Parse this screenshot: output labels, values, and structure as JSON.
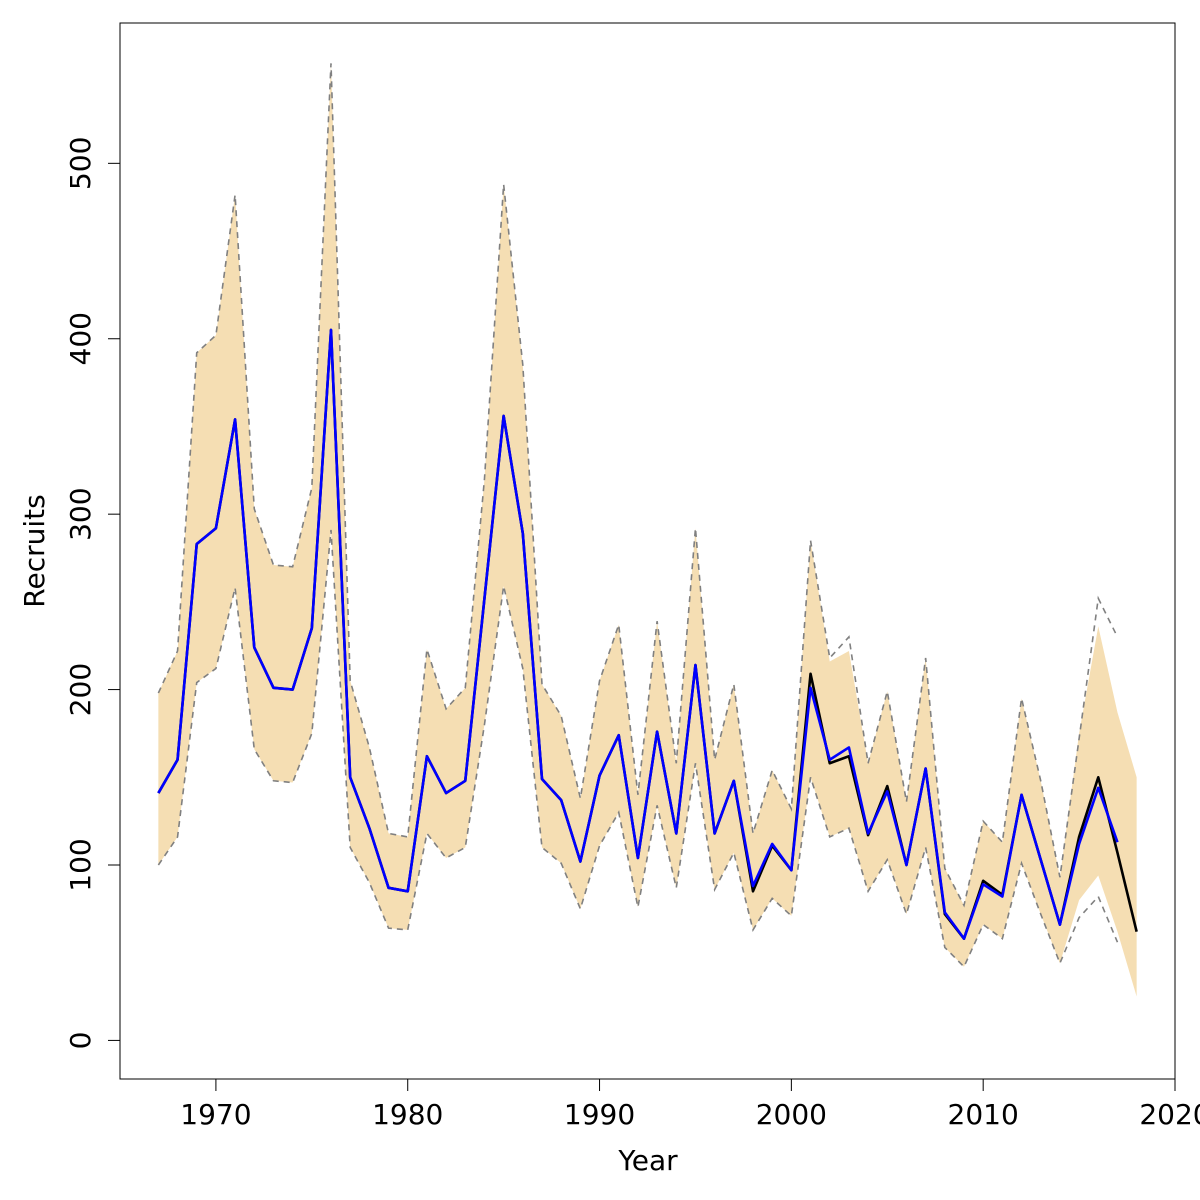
{
  "chart_data": {
    "type": "line",
    "title": "",
    "xlabel": "Year",
    "ylabel": "Recruits",
    "xlim": [
      1965,
      2020
    ],
    "ylim": [
      -22,
      580
    ],
    "xticks": [
      1970,
      1980,
      1990,
      2000,
      2010,
      2020
    ],
    "yticks": [
      0,
      100,
      200,
      300,
      400,
      500
    ],
    "grid": false,
    "legend": "none",
    "colors": {
      "band": "#f5deb3",
      "bound_lines": "#808080",
      "series_black": "#000000",
      "series_blue": "#0000ff",
      "axis": "#000000"
    },
    "band": {
      "x": [
        1967,
        1968,
        1969,
        1970,
        1971,
        1972,
        1973,
        1974,
        1975,
        1976,
        1977,
        1978,
        1979,
        1980,
        1981,
        1982,
        1983,
        1984,
        1985,
        1986,
        1987,
        1988,
        1989,
        1990,
        1991,
        1992,
        1993,
        1994,
        1995,
        1996,
        1997,
        1998,
        1999,
        2000,
        2001,
        2002,
        2003,
        2004,
        2005,
        2006,
        2007,
        2008,
        2009,
        2010,
        2011,
        2012,
        2013,
        2014,
        2015,
        2016,
        2017,
        2018
      ],
      "lower": [
        100,
        116,
        204,
        212,
        258,
        166,
        148,
        147,
        175,
        291,
        110,
        90,
        64,
        63,
        118,
        104,
        110,
        180,
        259,
        212,
        110,
        101,
        75,
        111,
        130,
        76,
        134,
        87,
        158,
        86,
        107,
        63,
        81,
        71,
        150,
        116,
        121,
        85,
        103,
        72,
        110,
        53,
        42,
        66,
        58,
        101,
        72,
        44,
        80,
        94,
        62,
        25
      ],
      "upper": [
        198,
        222,
        392,
        402,
        482,
        303,
        271,
        270,
        315,
        557,
        205,
        167,
        118,
        116,
        223,
        189,
        201,
        320,
        488,
        385,
        203,
        185,
        138,
        205,
        237,
        140,
        239,
        158,
        292,
        160,
        203,
        118,
        154,
        132,
        285,
        216,
        222,
        158,
        199,
        136,
        218,
        98,
        77,
        125,
        113,
        195,
        148,
        93,
        175,
        236,
        187,
        150
      ]
    },
    "series": [
      {
        "x": [
          1967,
          1968,
          1969,
          1970,
          1971,
          1972,
          1973,
          1974,
          1975,
          1976,
          1977,
          1978,
          1979,
          1980,
          1981,
          1982,
          1983,
          1984,
          1985,
          1986,
          1987,
          1988,
          1989,
          1990,
          1991,
          1992,
          1993,
          1994,
          1995,
          1996,
          1997,
          1998,
          1999,
          2000,
          2001,
          2002,
          2003,
          2004,
          2005,
          2006,
          2007,
          2008,
          2009,
          2010,
          2011,
          2012,
          2013,
          2014,
          2015,
          2016,
          2017,
          2018
        ],
        "values": [
          141,
          160,
          283,
          292,
          354,
          224,
          201,
          200,
          235,
          405,
          150,
          121,
          87,
          85,
          162,
          141,
          148,
          252,
          356,
          289,
          149,
          137,
          102,
          151,
          174,
          104,
          176,
          118,
          214,
          118,
          148,
          85,
          111,
          97,
          209,
          158,
          162,
          117,
          145,
          100,
          155,
          72,
          58,
          91,
          83,
          140,
          103,
          66,
          116,
          150,
          107,
          62
        ],
        "color": "#000000"
      },
      {
        "x": [
          1967,
          1968,
          1969,
          1970,
          1971,
          1972,
          1973,
          1974,
          1975,
          1976,
          1977,
          1978,
          1979,
          1980,
          1981,
          1982,
          1983,
          1984,
          1985,
          1986,
          1987,
          1988,
          1989,
          1990,
          1991,
          1992,
          1993,
          1994,
          1995,
          1996,
          1997,
          1998,
          1999,
          2000,
          2001,
          2002,
          2003,
          2004,
          2005,
          2006,
          2007,
          2008,
          2009,
          2010,
          2011,
          2012,
          2013,
          2014,
          2015,
          2016,
          2017
        ],
        "values": [
          141,
          160,
          283,
          292,
          354,
          224,
          201,
          200,
          235,
          405,
          150,
          121,
          87,
          85,
          162,
          141,
          148,
          252,
          356,
          289,
          149,
          137,
          102,
          151,
          174,
          104,
          176,
          118,
          214,
          118,
          148,
          88,
          112,
          97,
          201,
          160,
          167,
          118,
          142,
          100,
          155,
          73,
          58,
          89,
          82,
          140,
          103,
          66,
          112,
          144,
          113
        ],
        "color": "#0000ff"
      }
    ],
    "dashed_bounds": {
      "x": [
        1967,
        1968,
        1969,
        1970,
        1971,
        1972,
        1973,
        1974,
        1975,
        1976,
        1977,
        1978,
        1979,
        1980,
        1981,
        1982,
        1983,
        1984,
        1985,
        1986,
        1987,
        1988,
        1989,
        1990,
        1991,
        1992,
        1993,
        1994,
        1995,
        1996,
        1997,
        1998,
        1999,
        2000,
        2001,
        2002,
        2003,
        2004,
        2005,
        2006,
        2007,
        2008,
        2009,
        2010,
        2011,
        2012,
        2013,
        2014,
        2015,
        2016,
        2017
      ],
      "lower": [
        100,
        116,
        204,
        212,
        258,
        166,
        148,
        147,
        175,
        291,
        110,
        90,
        64,
        63,
        118,
        104,
        110,
        180,
        259,
        212,
        110,
        101,
        75,
        111,
        130,
        76,
        134,
        87,
        158,
        86,
        107,
        63,
        81,
        71,
        150,
        116,
        121,
        85,
        103,
        72,
        110,
        53,
        42,
        66,
        58,
        101,
        72,
        44,
        70,
        82,
        56
      ],
      "upper": [
        198,
        222,
        392,
        402,
        482,
        303,
        271,
        270,
        315,
        557,
        205,
        167,
        118,
        116,
        223,
        189,
        201,
        320,
        488,
        385,
        203,
        185,
        138,
        205,
        237,
        140,
        239,
        158,
        292,
        160,
        203,
        118,
        154,
        132,
        285,
        218,
        230,
        158,
        199,
        136,
        218,
        98,
        77,
        125,
        113,
        195,
        148,
        93,
        172,
        252,
        230
      ]
    }
  }
}
